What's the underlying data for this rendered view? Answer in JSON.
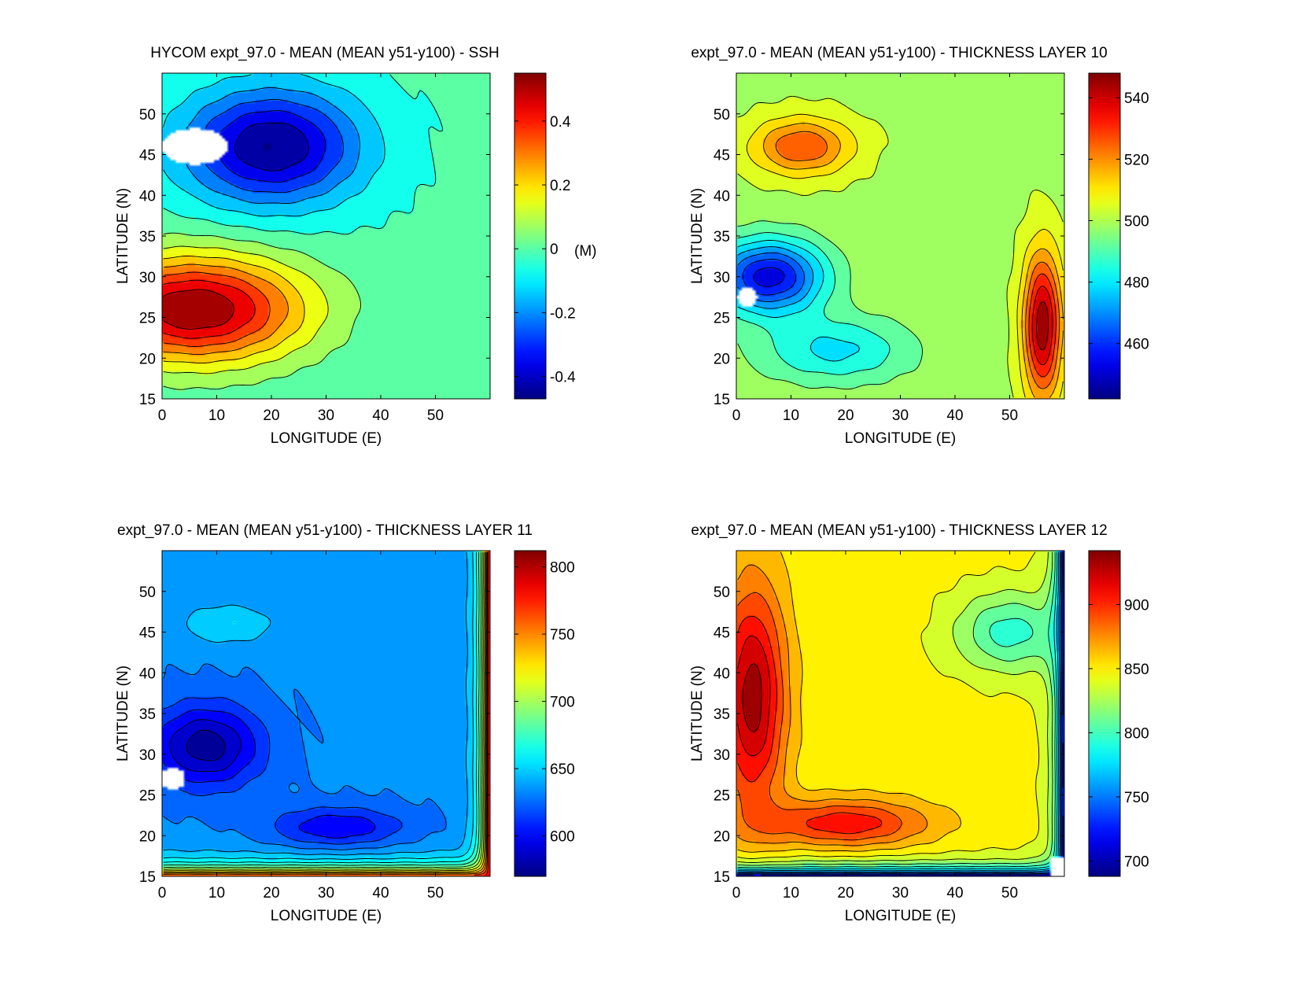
{
  "chart_data": [
    {
      "type": "heatmap",
      "title": "HYCOM expt_97.0 - MEAN (MEAN y51-y100) - SSH",
      "xlabel": "LONGITUDE (E)",
      "ylabel": "LATITUDE (N)",
      "xlim": [
        0,
        60
      ],
      "ylim": [
        15,
        55
      ],
      "x_ticks": [
        0,
        10,
        20,
        30,
        40,
        50
      ],
      "y_ticks": [
        15,
        20,
        25,
        30,
        35,
        40,
        45,
        50
      ],
      "colorbar": {
        "range": [
          -0.47,
          0.55
        ],
        "ticks": [
          -0.4,
          -0.2,
          0,
          0.2,
          0.4
        ],
        "tick_labels": [
          "-0.4",
          "-0.2",
          "0",
          "0.2",
          "0.4"
        ],
        "unit_label": "(M)"
      },
      "background_value": -0.02,
      "contour_levels": 14,
      "features": [
        {
          "kind": "gyre",
          "name": "subpolar low",
          "lon": 20,
          "lat": 46,
          "value": -0.47,
          "sx": 16,
          "sy": 7
        },
        {
          "kind": "gyre",
          "name": "subtropical high",
          "lon": 6,
          "lat": 26,
          "value": 0.55,
          "sx": 20,
          "sy": 6.5
        },
        {
          "kind": "missing",
          "lon": 6,
          "lat": 46,
          "rx": 6,
          "ry": 2.2
        }
      ]
    },
    {
      "type": "heatmap",
      "title": "expt_97.0 - MEAN (MEAN y51-y100) - THICKNESS LAYER 10",
      "xlabel": "LONGITUDE (E)",
      "ylabel": "LATITUDE (N)",
      "xlim": [
        0,
        60
      ],
      "ylim": [
        15,
        55
      ],
      "x_ticks": [
        0,
        10,
        20,
        30,
        40,
        50
      ],
      "y_ticks": [
        15,
        20,
        25,
        30,
        35,
        40,
        45,
        50
      ],
      "colorbar": {
        "range": [
          442,
          548
        ],
        "ticks": [
          460,
          480,
          500,
          520,
          540
        ],
        "tick_labels": [
          "460",
          "480",
          "500",
          "520",
          "540"
        ],
        "unit_label": ""
      },
      "background_value": 500,
      "contour_levels": 16,
      "features": [
        {
          "kind": "gyre",
          "name": "northern high",
          "lon": 12,
          "lat": 46,
          "value": 528,
          "sx": 9,
          "sy": 3.5
        },
        {
          "kind": "gyre",
          "name": "western low",
          "lon": 6,
          "lat": 30,
          "value": 452,
          "sx": 10,
          "sy": 4.5
        },
        {
          "kind": "gyre",
          "name": "southern low",
          "lon": 18,
          "lat": 21,
          "value": 480,
          "sx": 14,
          "sy": 4
        },
        {
          "kind": "gyre",
          "name": "eastern high",
          "lon": 56,
          "lat": 24,
          "value": 546,
          "sx": 3.5,
          "sy": 9
        },
        {
          "kind": "missing",
          "lon": 2,
          "lat": 27.5,
          "rx": 1.8,
          "ry": 1.2
        }
      ]
    },
    {
      "type": "heatmap",
      "title": "expt_97.0 - MEAN (MEAN y51-y100) - THICKNESS LAYER 11",
      "xlabel": "LONGITUDE (E)",
      "ylabel": "LATITUDE (N)",
      "xlim": [
        0,
        60
      ],
      "ylim": [
        15,
        55
      ],
      "x_ticks": [
        0,
        10,
        20,
        30,
        40,
        50
      ],
      "y_ticks": [
        15,
        20,
        25,
        30,
        35,
        40,
        45,
        50
      ],
      "colorbar": {
        "range": [
          570,
          812
        ],
        "ticks": [
          600,
          650,
          700,
          750,
          800
        ],
        "tick_labels": [
          "600",
          "650",
          "700",
          "750",
          "800"
        ],
        "unit_label": ""
      },
      "background_value": 632,
      "contour_levels": 20,
      "features": [
        {
          "kind": "gyre",
          "name": "northern ridge",
          "lon": 12,
          "lat": 46,
          "value": 655,
          "sx": 9,
          "sy": 2.5
        },
        {
          "kind": "gyre",
          "name": "western low",
          "lon": 8,
          "lat": 31,
          "value": 575,
          "sx": 10,
          "sy": 5
        },
        {
          "kind": "gyre",
          "name": "southern low",
          "lon": 32,
          "lat": 21,
          "value": 595,
          "sx": 12,
          "sy": 2.5
        },
        {
          "kind": "boundary",
          "name": "east edge",
          "edge": "east",
          "value": 812,
          "scale": 1.5
        },
        {
          "kind": "boundary",
          "name": "south edge",
          "edge": "south",
          "value": 780,
          "scale": 1.2
        },
        {
          "kind": "missing",
          "lon": 2,
          "lat": 27,
          "rx": 2.2,
          "ry": 1.4
        }
      ]
    },
    {
      "type": "heatmap",
      "title": "expt_97.0 - MEAN (MEAN y51-y100) - THICKNESS LAYER 12",
      "xlabel": "LONGITUDE (E)",
      "ylabel": "LATITUDE (N)",
      "xlim": [
        0,
        60
      ],
      "ylim": [
        15,
        55
      ],
      "x_ticks": [
        0,
        10,
        20,
        30,
        40,
        50
      ],
      "y_ticks": [
        15,
        20,
        25,
        30,
        35,
        40,
        45,
        50
      ],
      "colorbar": {
        "range": [
          688,
          942
        ],
        "ticks": [
          700,
          750,
          800,
          850,
          900
        ],
        "tick_labels": [
          "700",
          "750",
          "800",
          "850",
          "900"
        ],
        "unit_label": ""
      },
      "background_value": 848,
      "contour_levels": 18,
      "features": [
        {
          "kind": "gyre",
          "name": "western high",
          "lon": 3,
          "lat": 37,
          "value": 935,
          "sx": 6,
          "sy": 14
        },
        {
          "kind": "gyre",
          "name": "southern high",
          "lon": 20,
          "lat": 21.5,
          "value": 910,
          "sx": 15,
          "sy": 3
        },
        {
          "kind": "gyre",
          "name": "northeast low",
          "lon": 50,
          "lat": 45,
          "value": 795,
          "sx": 10,
          "sy": 5
        },
        {
          "kind": "boundary",
          "name": "east edge",
          "edge": "east",
          "value": 690,
          "scale": 1.4
        },
        {
          "kind": "boundary",
          "name": "south edge",
          "edge": "south",
          "value": 690,
          "scale": 1.0
        },
        {
          "kind": "missing_region",
          "name": "southeast corner blank",
          "lon_min": 57.5,
          "lat_max": 17.5
        }
      ]
    }
  ]
}
